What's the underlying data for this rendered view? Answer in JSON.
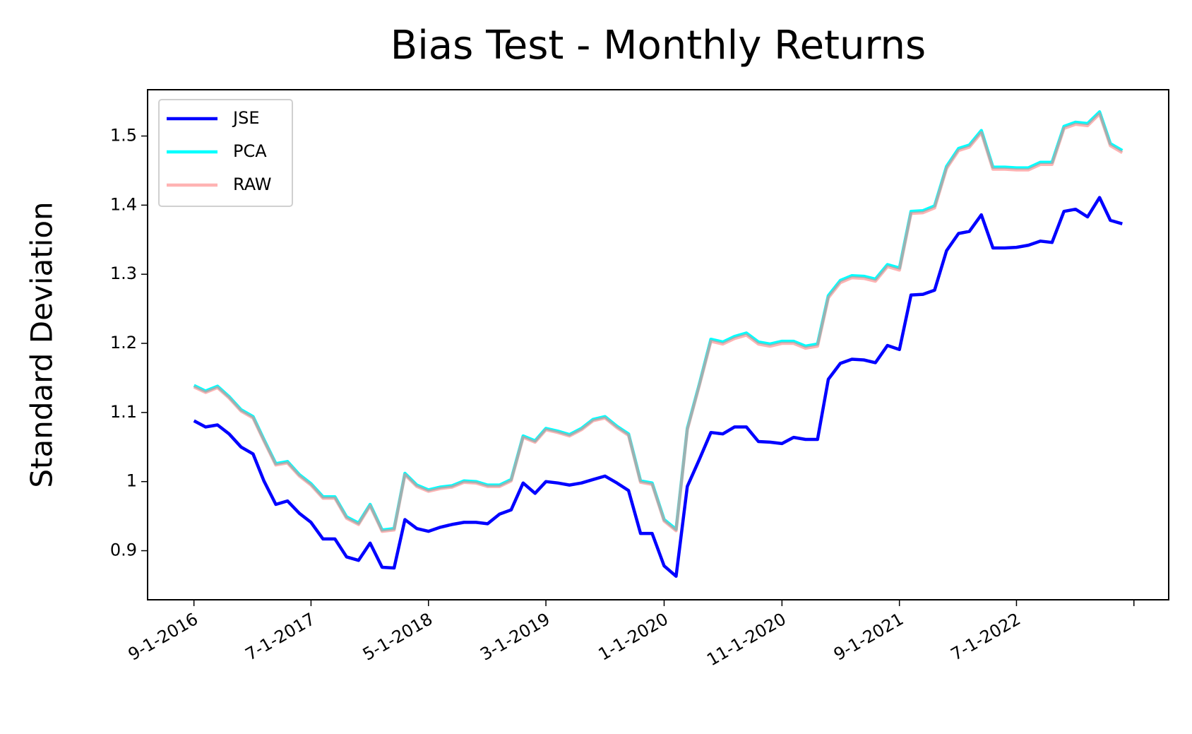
{
  "chart_data": {
    "type": "line",
    "title": "Bias Test - Monthly Returns",
    "ylabel": "Standard Deviation",
    "x": [
      "9-1-2016",
      "10-1-2016",
      "11-1-2016",
      "12-1-2016",
      "1-1-2017",
      "2-1-2017",
      "3-1-2017",
      "4-1-2017",
      "5-1-2017",
      "6-1-2017",
      "7-1-2017",
      "8-1-2017",
      "9-1-2017",
      "10-1-2017",
      "11-1-2017",
      "12-1-2017",
      "1-1-2018",
      "2-1-2018",
      "3-1-2018",
      "4-1-2018",
      "5-1-2018",
      "6-1-2018",
      "7-1-2018",
      "8-1-2018",
      "9-1-2018",
      "10-1-2018",
      "11-1-2018",
      "12-1-2018",
      "1-1-2019",
      "2-1-2019",
      "3-1-2019",
      "4-1-2019",
      "5-1-2019",
      "6-1-2019",
      "7-1-2019",
      "8-1-2019",
      "9-1-2019",
      "10-1-2019",
      "11-1-2019",
      "12-1-2019",
      "1-1-2020",
      "2-1-2020",
      "3-1-2020",
      "4-1-2020",
      "5-1-2020",
      "6-1-2020",
      "7-1-2020",
      "8-1-2020",
      "9-1-2020",
      "10-1-2020",
      "11-1-2020",
      "12-1-2020",
      "1-1-2021",
      "2-1-2021",
      "3-1-2021",
      "4-1-2021",
      "5-1-2021",
      "6-1-2021",
      "7-1-2021",
      "8-1-2021",
      "9-1-2021",
      "10-1-2021",
      "11-1-2021",
      "12-1-2021",
      "1-1-2022",
      "2-1-2022",
      "3-1-2022",
      "4-1-2022",
      "5-1-2022",
      "6-1-2022",
      "7-1-2022",
      "8-1-2022",
      "9-1-2022",
      "10-1-2022",
      "11-1-2022",
      "12-1-2022",
      "1-1-2023",
      "2-1-2023",
      "3-1-2023",
      "4-1-2023"
    ],
    "series": [
      {
        "name": "JSE",
        "color": "#0000ff",
        "alpha": 1,
        "values": [
          1.088,
          1.079,
          1.082,
          1.069,
          1.05,
          1.04,
          1.001,
          0.967,
          0.972,
          0.954,
          0.941,
          0.917,
          0.917,
          0.891,
          0.886,
          0.911,
          0.876,
          0.875,
          0.945,
          0.932,
          0.928,
          0.934,
          0.938,
          0.941,
          0.941,
          0.939,
          0.953,
          0.959,
          0.998,
          0.983,
          1.0,
          0.998,
          0.995,
          0.998,
          1.003,
          1.008,
          0.998,
          0.987,
          0.925,
          0.925,
          0.878,
          0.863,
          0.993,
          1.032,
          1.071,
          1.069,
          1.079,
          1.079,
          1.058,
          1.057,
          1.055,
          1.064,
          1.061,
          1.061,
          1.148,
          1.171,
          1.177,
          1.176,
          1.172,
          1.197,
          1.191,
          1.27,
          1.271,
          1.277,
          1.334,
          1.359,
          1.362,
          1.386,
          1.338,
          1.338,
          1.339,
          1.342,
          1.348,
          1.346,
          1.391,
          1.394,
          1.383,
          1.411,
          1.378,
          1.373
        ]
      },
      {
        "name": "PCA",
        "color": "#00ffff",
        "alpha": 1,
        "values": [
          1.139,
          1.131,
          1.138,
          1.123,
          1.104,
          1.094,
          1.061,
          1.026,
          1.029,
          1.01,
          0.997,
          0.978,
          0.978,
          0.949,
          0.94,
          0.967,
          0.93,
          0.932,
          1.012,
          0.995,
          0.988,
          0.992,
          0.994,
          1.001,
          1.0,
          0.995,
          0.995,
          1.003,
          1.066,
          1.059,
          1.077,
          1.073,
          1.068,
          1.077,
          1.09,
          1.094,
          1.08,
          1.069,
          1.001,
          0.998,
          0.945,
          0.931,
          1.077,
          1.141,
          1.206,
          1.202,
          1.21,
          1.215,
          1.202,
          1.199,
          1.203,
          1.203,
          1.196,
          1.199,
          1.269,
          1.291,
          1.298,
          1.297,
          1.293,
          1.314,
          1.309,
          1.391,
          1.392,
          1.399,
          1.456,
          1.482,
          1.487,
          1.508,
          1.455,
          1.455,
          1.454,
          1.454,
          1.462,
          1.462,
          1.514,
          1.52,
          1.518,
          1.535,
          1.489,
          1.479
        ]
      },
      {
        "name": "RAW",
        "color": "#ff8080",
        "alpha": 0.6,
        "values": [
          1.137,
          1.129,
          1.136,
          1.121,
          1.102,
          1.092,
          1.059,
          1.024,
          1.027,
          1.008,
          0.995,
          0.976,
          0.976,
          0.947,
          0.938,
          0.965,
          0.928,
          0.93,
          1.01,
          0.993,
          0.986,
          0.99,
          0.992,
          0.999,
          0.998,
          0.993,
          0.993,
          1.001,
          1.064,
          1.057,
          1.075,
          1.071,
          1.066,
          1.075,
          1.088,
          1.092,
          1.078,
          1.067,
          0.999,
          0.996,
          0.943,
          0.929,
          1.075,
          1.139,
          1.203,
          1.199,
          1.207,
          1.212,
          1.199,
          1.196,
          1.2,
          1.2,
          1.193,
          1.196,
          1.266,
          1.288,
          1.295,
          1.294,
          1.29,
          1.311,
          1.306,
          1.388,
          1.389,
          1.396,
          1.453,
          1.479,
          1.484,
          1.505,
          1.452,
          1.452,
          1.451,
          1.451,
          1.459,
          1.459,
          1.511,
          1.517,
          1.515,
          1.532,
          1.486,
          1.476
        ]
      }
    ],
    "xlim": [
      "5-4-2016",
      "7-30-2023"
    ],
    "xticks": [
      "9-1-2016",
      "7-1-2017",
      "5-1-2018",
      "3-1-2019",
      "1-1-2020",
      "11-1-2020",
      "9-1-2021",
      "7-1-2022",
      {
        "value": "5-1-2023",
        "label": null
      }
    ],
    "ylim": [
      0.829,
      1.567
    ],
    "yticks": [
      0.9,
      1.0,
      1.1,
      1.2,
      1.3,
      1.4,
      1.5
    ],
    "legend": "upper left",
    "grid": false
  }
}
